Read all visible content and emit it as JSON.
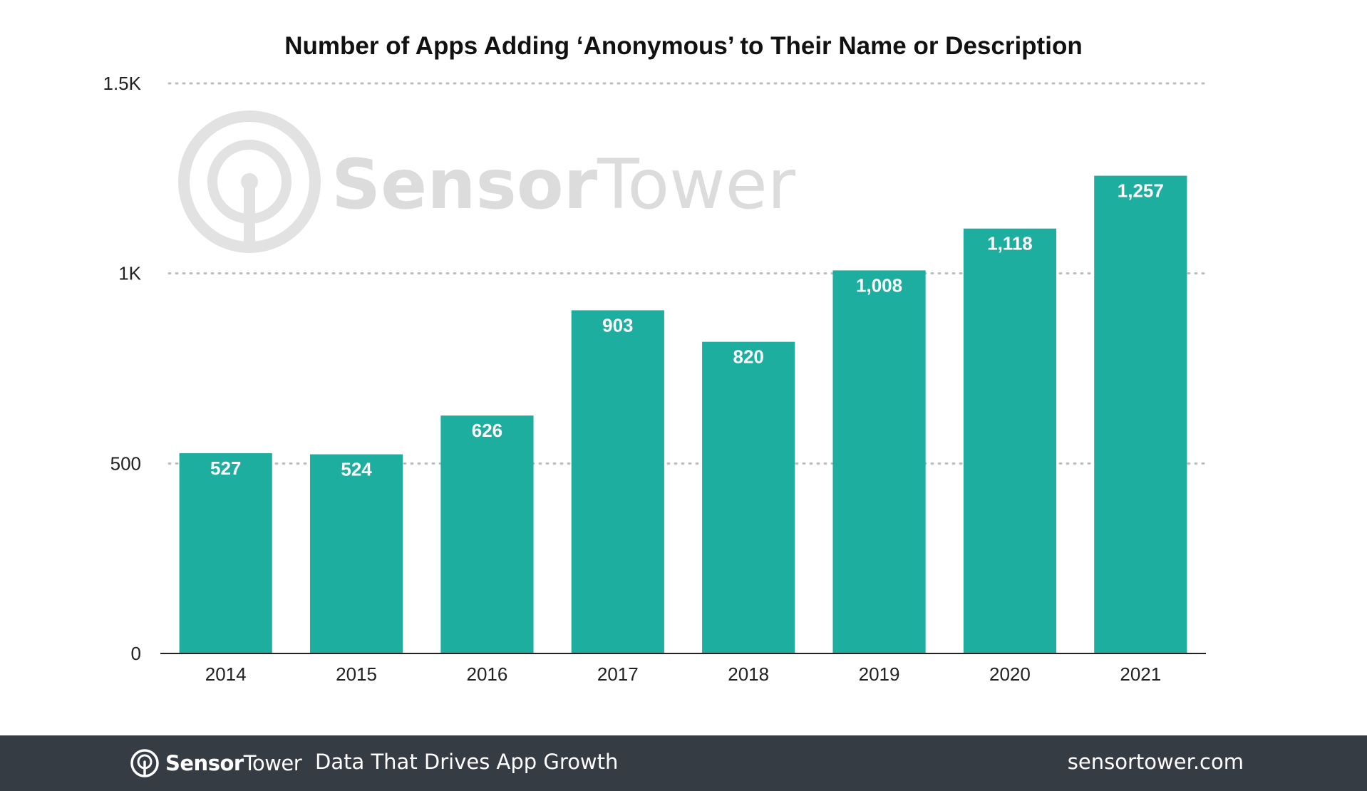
{
  "chart_data": {
    "type": "bar",
    "title": "Number of Apps Adding ‘Anonymous’ to Their Name or Description",
    "categories": [
      "2014",
      "2015",
      "2016",
      "2017",
      "2018",
      "2019",
      "2020",
      "2021"
    ],
    "values": [
      527,
      524,
      626,
      903,
      820,
      1008,
      1118,
      1257
    ],
    "value_labels": [
      "527",
      "524",
      "626",
      "903",
      "820",
      "1,008",
      "1,118",
      "1,257"
    ],
    "ylim": [
      0,
      1500
    ],
    "yticks": [
      0,
      500,
      1000,
      1500
    ],
    "ytick_labels": [
      "0",
      "500",
      "1K",
      "1.5K"
    ],
    "bar_color": "#1eaea0",
    "grid": "dotted horizontal",
    "legend": "none"
  },
  "watermark": {
    "brand_part1": "Sensor",
    "brand_part2": "Tower",
    "icon": "sensortower-logo-icon"
  },
  "footer": {
    "logo_part1": "Sensor",
    "logo_part2": "Tower",
    "tagline": "Data That Drives App Growth",
    "url": "sensortower.com",
    "background": "#363c44"
  }
}
